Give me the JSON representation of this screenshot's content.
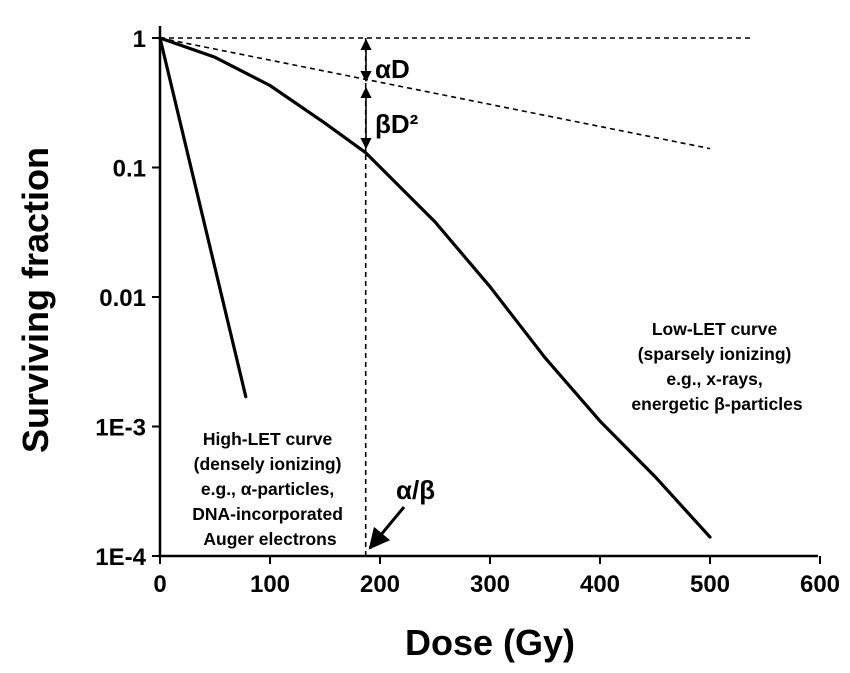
{
  "chart_data": {
    "type": "line",
    "title": "",
    "xlabel": "Dose (Gy)",
    "ylabel": "Surviving fraction",
    "y_scale": "log",
    "xlim": [
      0,
      600
    ],
    "ylim": [
      0.0001,
      1
    ],
    "x_ticks": [
      0,
      100,
      200,
      300,
      400,
      500,
      600
    ],
    "x_tick_labels": [
      "0",
      "100",
      "200",
      "300",
      "400",
      "500",
      "600"
    ],
    "y_ticks": [
      1,
      0.1,
      0.01,
      0.001,
      0.0001
    ],
    "y_tick_labels": [
      "1",
      "0.1",
      "0.01",
      "1E-3",
      "1E-4"
    ],
    "grid": false,
    "series": [
      {
        "style": "solid",
        "x": [
          0,
          78
        ],
        "y": [
          1,
          0.0017
        ]
      },
      {
        "style": "solid",
        "x": [
          0,
          50,
          100,
          150,
          187,
          250,
          300,
          350,
          400,
          450,
          500
        ],
        "y": [
          1,
          0.71,
          0.43,
          0.22,
          0.13,
          0.038,
          0.012,
          0.0034,
          0.0011,
          0.00041,
          0.00014
        ]
      },
      {
        "style": "dashed",
        "x": [
          0,
          540
        ],
        "y": [
          1,
          1
        ]
      },
      {
        "style": "dashed",
        "x": [
          0,
          500
        ],
        "y": [
          1,
          0.14
        ]
      },
      {
        "style": "dashed",
        "x": [
          187,
          187
        ],
        "y": [
          1,
          0.0001
        ]
      }
    ],
    "annotations": {
      "alpha_d": "αD",
      "beta_d2": "βD²",
      "alpha_over_beta": "α/β",
      "high_let": [
        "High-LET curve",
        "(densely ionizing)",
        "e.g., α-particles,",
        "DNA-incorporated",
        "Auger electrons"
      ],
      "low_let": [
        "Low-LET curve",
        "(sparsely ionizing)",
        "e.g., x-rays,",
        "energetic β-particles"
      ]
    }
  }
}
